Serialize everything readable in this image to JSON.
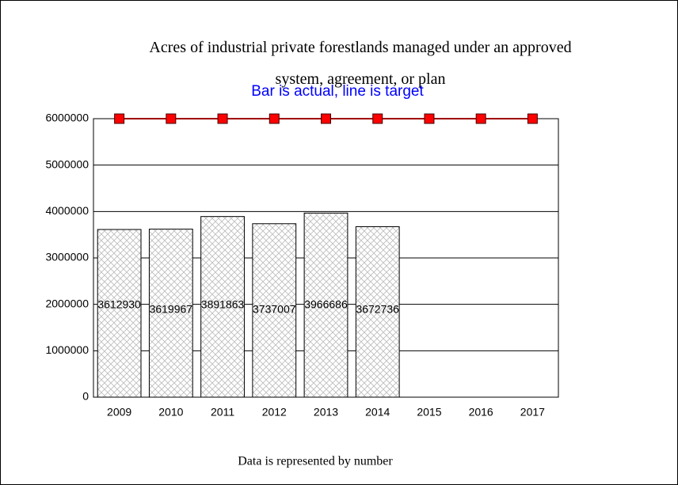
{
  "chart_data": {
    "type": "bar",
    "title": "Acres of industrial private forestlands managed under an approved system, agreement, or plan",
    "subtitle": "Bar is actual, line is target",
    "footer": "Data is represented by number",
    "categories": [
      "2009",
      "2010",
      "2011",
      "2012",
      "2013",
      "2014",
      "2015",
      "2016",
      "2017"
    ],
    "series": [
      {
        "type": "bar",
        "color": "#c0c0c0",
        "values": [
          3612930,
          3619967,
          3891863,
          3737007,
          3966686,
          3672736,
          null,
          null,
          null
        ]
      },
      {
        "type": "line",
        "color": "#ff0000",
        "values": [
          6000000,
          6000000,
          6000000,
          6000000,
          6000000,
          6000000,
          6000000,
          6000000,
          6000000
        ]
      }
    ],
    "ylim": [
      0,
      6000000
    ],
    "yticks": [
      0,
      1000000,
      2000000,
      3000000,
      4000000,
      5000000,
      6000000
    ],
    "grid": true
  }
}
